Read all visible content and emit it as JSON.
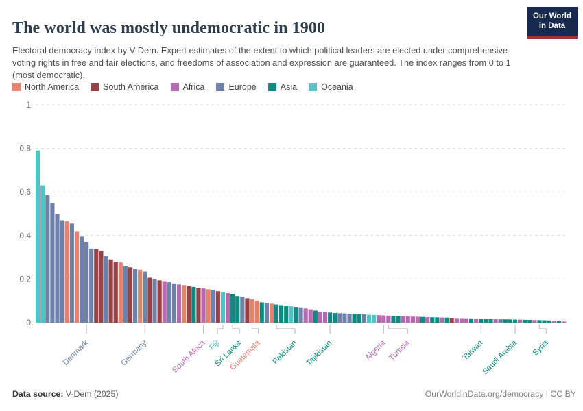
{
  "header": {
    "title": "The world was mostly undemocratic in 1900",
    "subtitle": "Electoral democracy index by V-Dem. Expert estimates of the extent to which political leaders are elected under comprehensive voting rights in free and fair elections, and freedoms of association and expression are guaranteed. The index ranges from 0 to 1 (most democratic).",
    "logo": {
      "line1": "Our World",
      "line2": "in Data",
      "bg_color": "#16294f",
      "stripe_color": "#9d3335"
    }
  },
  "legend": {
    "items": [
      {
        "label": "North America",
        "color": "#e5826e"
      },
      {
        "label": "South America",
        "color": "#9a4146"
      },
      {
        "label": "Africa",
        "color": "#b76ab1"
      },
      {
        "label": "Europe",
        "color": "#6e82a9"
      },
      {
        "label": "Asia",
        "color": "#0f8a7f"
      },
      {
        "label": "Oceania",
        "color": "#52c2c4"
      }
    ]
  },
  "chart_data": {
    "type": "bar",
    "title": "Electoral democracy index, 1900",
    "xlabel": "",
    "ylabel": "",
    "ylim": [
      0,
      1
    ],
    "yticks": [
      0,
      0.2,
      0.4,
      0.6,
      0.8,
      1
    ],
    "grid": "dashed horizontal",
    "legend_position": "top",
    "continent_colors": {
      "NA": "#e5826e",
      "SA": "#9a4146",
      "AF": "#b76ab1",
      "EU": "#6e82a9",
      "AS": "#0f8a7f",
      "OC": "#52c2c4"
    },
    "bars": [
      {
        "v": 0.79,
        "c": "OC"
      },
      {
        "v": 0.63,
        "c": "OC"
      },
      {
        "v": 0.585,
        "c": "EU"
      },
      {
        "v": 0.55,
        "c": "EU"
      },
      {
        "v": 0.5,
        "c": "EU"
      },
      {
        "v": 0.47,
        "c": "EU"
      },
      {
        "v": 0.465,
        "c": "NA"
      },
      {
        "v": 0.455,
        "c": "EU"
      },
      {
        "v": 0.42,
        "c": "NA"
      },
      {
        "v": 0.395,
        "c": "EU"
      },
      {
        "v": 0.37,
        "c": "EU",
        "label": "Denmark"
      },
      {
        "v": 0.34,
        "c": "EU"
      },
      {
        "v": 0.338,
        "c": "SA"
      },
      {
        "v": 0.33,
        "c": "SA"
      },
      {
        "v": 0.305,
        "c": "EU"
      },
      {
        "v": 0.29,
        "c": "SA"
      },
      {
        "v": 0.28,
        "c": "SA"
      },
      {
        "v": 0.276,
        "c": "NA"
      },
      {
        "v": 0.258,
        "c": "EU"
      },
      {
        "v": 0.254,
        "c": "SA"
      },
      {
        "v": 0.248,
        "c": "EU"
      },
      {
        "v": 0.243,
        "c": "NA"
      },
      {
        "v": 0.234,
        "c": "EU",
        "label": "Germany"
      },
      {
        "v": 0.206,
        "c": "SA"
      },
      {
        "v": 0.2,
        "c": "EU"
      },
      {
        "v": 0.194,
        "c": "SA"
      },
      {
        "v": 0.19,
        "c": "AF"
      },
      {
        "v": 0.185,
        "c": "EU"
      },
      {
        "v": 0.18,
        "c": "EU"
      },
      {
        "v": 0.175,
        "c": "AF"
      },
      {
        "v": 0.172,
        "c": "NA"
      },
      {
        "v": 0.167,
        "c": "SA"
      },
      {
        "v": 0.164,
        "c": "AS"
      },
      {
        "v": 0.16,
        "c": "SA"
      },
      {
        "v": 0.157,
        "c": "AF",
        "label": "South Africa"
      },
      {
        "v": 0.153,
        "c": "NA"
      },
      {
        "v": 0.15,
        "c": "EU"
      },
      {
        "v": 0.144,
        "c": "SA"
      },
      {
        "v": 0.139,
        "c": "OC",
        "label": "Fiji",
        "ldx": -8
      },
      {
        "v": 0.135,
        "c": "AF"
      },
      {
        "v": 0.132,
        "c": "AS",
        "label": "Sri Lanka",
        "ldx": 10
      },
      {
        "v": 0.122,
        "c": "AS"
      },
      {
        "v": 0.119,
        "c": "EU"
      },
      {
        "v": 0.112,
        "c": "SA"
      },
      {
        "v": 0.107,
        "c": "NA",
        "label": "Guatemala",
        "ldx": 9
      },
      {
        "v": 0.101,
        "c": "NA"
      },
      {
        "v": 0.093,
        "c": "AS"
      },
      {
        "v": 0.09,
        "c": "EU"
      },
      {
        "v": 0.087,
        "c": "NA"
      },
      {
        "v": 0.083,
        "c": "AS",
        "label": "Pakistan",
        "ldx": 27
      },
      {
        "v": 0.08,
        "c": "AS"
      },
      {
        "v": 0.077,
        "c": "AS"
      },
      {
        "v": 0.075,
        "c": "OC"
      },
      {
        "v": 0.072,
        "c": "AS"
      },
      {
        "v": 0.07,
        "c": "EU"
      },
      {
        "v": 0.065,
        "c": "AF"
      },
      {
        "v": 0.061,
        "c": "AF"
      },
      {
        "v": 0.055,
        "c": "AS"
      },
      {
        "v": 0.05,
        "c": "AF"
      },
      {
        "v": 0.048,
        "c": "AF"
      },
      {
        "v": 0.046,
        "c": "AS",
        "label": "Tajikistan"
      },
      {
        "v": 0.044,
        "c": "AS"
      },
      {
        "v": 0.043,
        "c": "EU"
      },
      {
        "v": 0.042,
        "c": "EU"
      },
      {
        "v": 0.041,
        "c": "EU"
      },
      {
        "v": 0.04,
        "c": "AS"
      },
      {
        "v": 0.039,
        "c": "AS"
      },
      {
        "v": 0.038,
        "c": "EU"
      },
      {
        "v": 0.036,
        "c": "OC"
      },
      {
        "v": 0.035,
        "c": "OC"
      },
      {
        "v": 0.034,
        "c": "AF"
      },
      {
        "v": 0.033,
        "c": "AF",
        "label": "Algeria"
      },
      {
        "v": 0.032,
        "c": "AF",
        "label": "Tunisia",
        "ldx": 28
      },
      {
        "v": 0.031,
        "c": "AS"
      },
      {
        "v": 0.03,
        "c": "AS"
      },
      {
        "v": 0.029,
        "c": "AF"
      },
      {
        "v": 0.028,
        "c": "AF"
      },
      {
        "v": 0.0275,
        "c": "AF"
      },
      {
        "v": 0.027,
        "c": "AF"
      },
      {
        "v": 0.026,
        "c": "AS"
      },
      {
        "v": 0.025,
        "c": "AF"
      },
      {
        "v": 0.0245,
        "c": "AS"
      },
      {
        "v": 0.024,
        "c": "AS"
      },
      {
        "v": 0.0235,
        "c": "AF"
      },
      {
        "v": 0.023,
        "c": "AS"
      },
      {
        "v": 0.022,
        "c": "SA"
      },
      {
        "v": 0.021,
        "c": "AF"
      },
      {
        "v": 0.0205,
        "c": "AF"
      },
      {
        "v": 0.02,
        "c": "AF"
      },
      {
        "v": 0.0195,
        "c": "AS"
      },
      {
        "v": 0.019,
        "c": "AF"
      },
      {
        "v": 0.018,
        "c": "AS",
        "label": "Taiwan"
      },
      {
        "v": 0.017,
        "c": "AS"
      },
      {
        "v": 0.0165,
        "c": "AS"
      },
      {
        "v": 0.016,
        "c": "AF"
      },
      {
        "v": 0.0155,
        "c": "EU"
      },
      {
        "v": 0.015,
        "c": "AS"
      },
      {
        "v": 0.0145,
        "c": "AS"
      },
      {
        "v": 0.014,
        "c": "AS",
        "label": "Saudi Arabia"
      },
      {
        "v": 0.0135,
        "c": "AF"
      },
      {
        "v": 0.013,
        "c": "AS"
      },
      {
        "v": 0.0125,
        "c": "AS"
      },
      {
        "v": 0.012,
        "c": "AF"
      },
      {
        "v": 0.0115,
        "c": "AS",
        "label": "Syria",
        "ldx": 10
      },
      {
        "v": 0.011,
        "c": "AS"
      },
      {
        "v": 0.01,
        "c": "AS"
      },
      {
        "v": 0.009,
        "c": "AF"
      },
      {
        "v": 0.007,
        "c": "AS"
      },
      {
        "v": 0.005,
        "c": "AF"
      }
    ]
  },
  "footer": {
    "source_label": "Data source:",
    "source_value": " V-Dem (2025)",
    "right_text": "OurWorldinData.org/democracy | CC BY"
  },
  "style": {
    "grid_color": "#dcdcdc",
    "axis_color": "#c9c9c9",
    "tick_color": "#c0c0c0",
    "ytick_label_color": "#6e747e"
  }
}
